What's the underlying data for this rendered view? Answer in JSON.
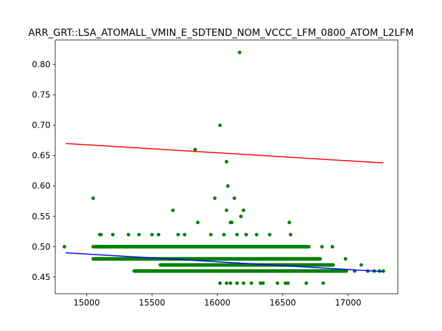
{
  "chart_data": {
    "type": "scatter",
    "title": "ARR_GRT::LSA_ATOMALL_VMIN_E_SDTEND_NOM_VCCC_LFM_0800_ATOM_L2LFM",
    "xlabel": "",
    "ylabel": "",
    "xlim": [
      14760,
      17380
    ],
    "ylim": [
      0.4225,
      0.8405
    ],
    "xticks": [
      15000,
      15500,
      16000,
      16500,
      17000
    ],
    "xtick_labels": [
      "15000",
      "15500",
      "16000",
      "16500",
      "17000"
    ],
    "yticks": [
      0.45,
      0.5,
      0.55,
      0.6,
      0.65,
      0.7,
      0.75,
      0.8
    ],
    "ytick_labels": [
      "0.45",
      "0.50",
      "0.55",
      "0.60",
      "0.65",
      "0.70",
      "0.75",
      "0.80"
    ],
    "grid": false,
    "colors": {
      "points": "#008000",
      "upper_line": "#ff0000",
      "lower_line": "#0000ff"
    },
    "bands": [
      {
        "y": 0.46,
        "x_start": 15350,
        "x_end": 17000
      },
      {
        "y": 0.47,
        "x_start": 15550,
        "x_end": 16900
      },
      {
        "y": 0.48,
        "x_start": 15050,
        "x_end": 16800
      },
      {
        "y": 0.5,
        "x_start": 15050,
        "x_end": 16700
      }
    ],
    "points": [
      [
        14830,
        0.5
      ],
      [
        15050,
        0.58
      ],
      [
        15100,
        0.52
      ],
      [
        15110,
        0.52
      ],
      [
        15200,
        0.52
      ],
      [
        15320,
        0.52
      ],
      [
        15400,
        0.52
      ],
      [
        15500,
        0.52
      ],
      [
        15550,
        0.52
      ],
      [
        15660,
        0.56
      ],
      [
        15700,
        0.52
      ],
      [
        15750,
        0.52
      ],
      [
        15830,
        0.66
      ],
      [
        15850,
        0.54
      ],
      [
        15950,
        0.52
      ],
      [
        15980,
        0.58
      ],
      [
        16020,
        0.7
      ],
      [
        16050,
        0.52
      ],
      [
        16070,
        0.64
      ],
      [
        16080,
        0.6
      ],
      [
        16070,
        0.56
      ],
      [
        16100,
        0.54
      ],
      [
        16110,
        0.54
      ],
      [
        16130,
        0.58
      ],
      [
        16150,
        0.52
      ],
      [
        16170,
        0.82
      ],
      [
        16180,
        0.55
      ],
      [
        16200,
        0.56
      ],
      [
        16220,
        0.52
      ],
      [
        16300,
        0.52
      ],
      [
        16400,
        0.52
      ],
      [
        16550,
        0.54
      ],
      [
        16560,
        0.52
      ],
      [
        16700,
        0.5
      ],
      [
        16800,
        0.5
      ],
      [
        16880,
        0.5
      ],
      [
        16980,
        0.48
      ],
      [
        17050,
        0.46
      ],
      [
        17100,
        0.47
      ],
      [
        17150,
        0.46
      ],
      [
        17200,
        0.46
      ],
      [
        17240,
        0.46
      ],
      [
        17270,
        0.46
      ],
      [
        16020,
        0.44
      ],
      [
        16070,
        0.44
      ],
      [
        16100,
        0.44
      ],
      [
        16150,
        0.44
      ],
      [
        16200,
        0.44
      ],
      [
        16260,
        0.44
      ],
      [
        16330,
        0.44
      ],
      [
        16350,
        0.44
      ],
      [
        16460,
        0.44
      ],
      [
        16520,
        0.44
      ],
      [
        16540,
        0.44
      ],
      [
        16680,
        0.44
      ],
      [
        16810,
        0.44
      ],
      [
        15050,
        0.48
      ],
      [
        15080,
        0.48
      ],
      [
        15100,
        0.48
      ],
      [
        15120,
        0.48
      ],
      [
        15160,
        0.48
      ],
      [
        15050,
        0.5
      ],
      [
        15070,
        0.5
      ],
      [
        15090,
        0.5
      ],
      [
        15110,
        0.5
      ],
      [
        15130,
        0.5
      ]
    ],
    "series": [
      {
        "values": [
          [
            14840,
            0.67
          ],
          [
            17270,
            0.638
          ]
        ]
      },
      {
        "values": [
          [
            14840,
            0.49
          ],
          [
            17270,
            0.459
          ]
        ]
      }
    ]
  }
}
